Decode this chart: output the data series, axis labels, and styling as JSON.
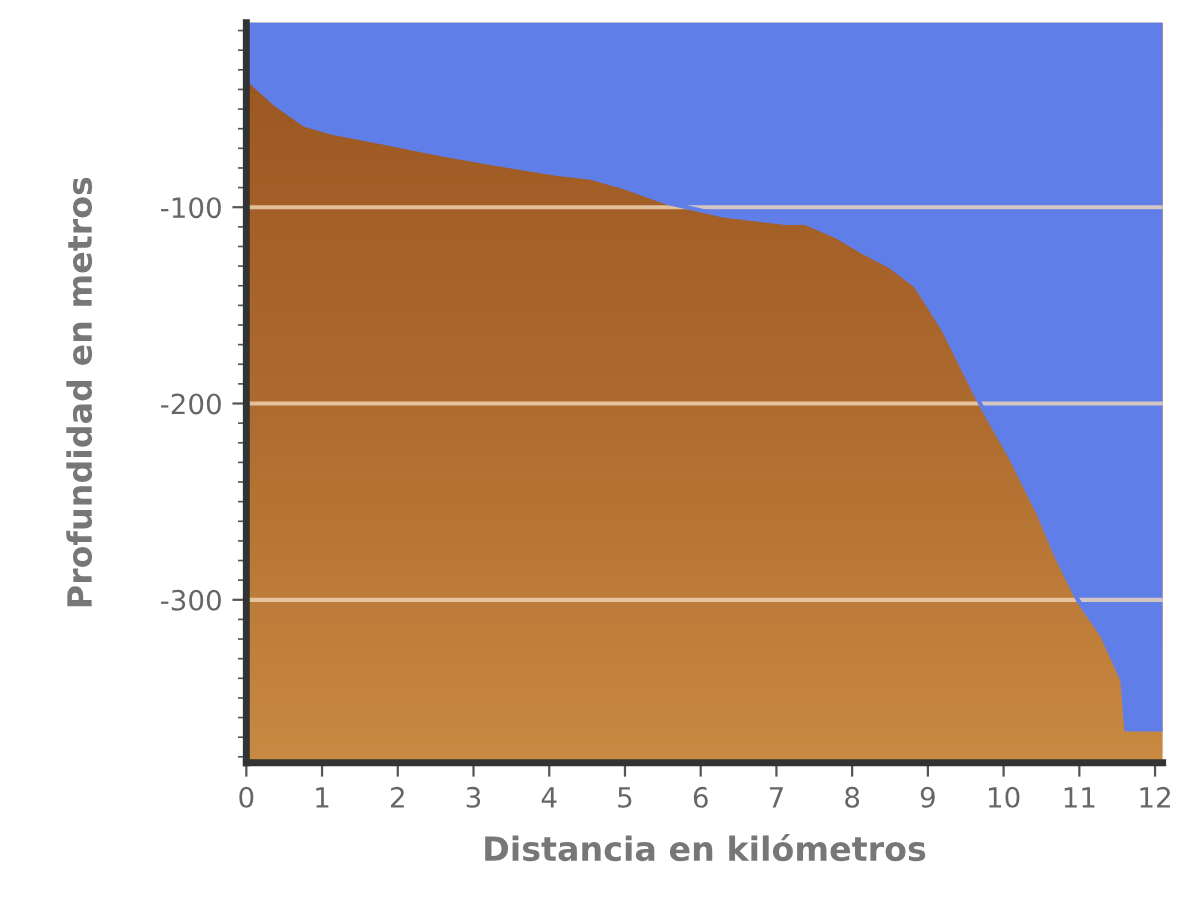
{
  "chart_data": {
    "type": "area",
    "xlabel": "Distancia en kilómetros",
    "ylabel": "Profundidad en metros",
    "xlim": [
      0,
      12.1
    ],
    "ylim": [
      -383,
      -6
    ],
    "xticks": [
      0,
      1,
      2,
      3,
      4,
      5,
      6,
      7,
      8,
      9,
      10,
      11,
      12
    ],
    "yticks": [
      -100,
      -200,
      -300
    ],
    "grid": "y",
    "series": [
      {
        "color": "#5f7ee8",
        "x": [
          0,
          0.08,
          0.4,
          0.77,
          1.13,
          1.8,
          2.57,
          3.3,
          4.11,
          4.55,
          5.0,
          5.58,
          6.27,
          7.12,
          7.38,
          7.8,
          8.15,
          8.5,
          8.84,
          9.2,
          9.69,
          10.1,
          10.46,
          10.7,
          10.98,
          11.3,
          11.57,
          11.62,
          12.1
        ],
        "values": [
          -30,
          -37,
          -48,
          -58,
          -62,
          -67,
          -73,
          -78,
          -83,
          -85,
          -90,
          -98,
          -104,
          -108,
          -108,
          -115,
          -123,
          -130,
          -140,
          -162,
          -200,
          -228,
          -256,
          -278,
          -300,
          -318,
          -341,
          -366,
          -366
        ]
      }
    ]
  }
}
